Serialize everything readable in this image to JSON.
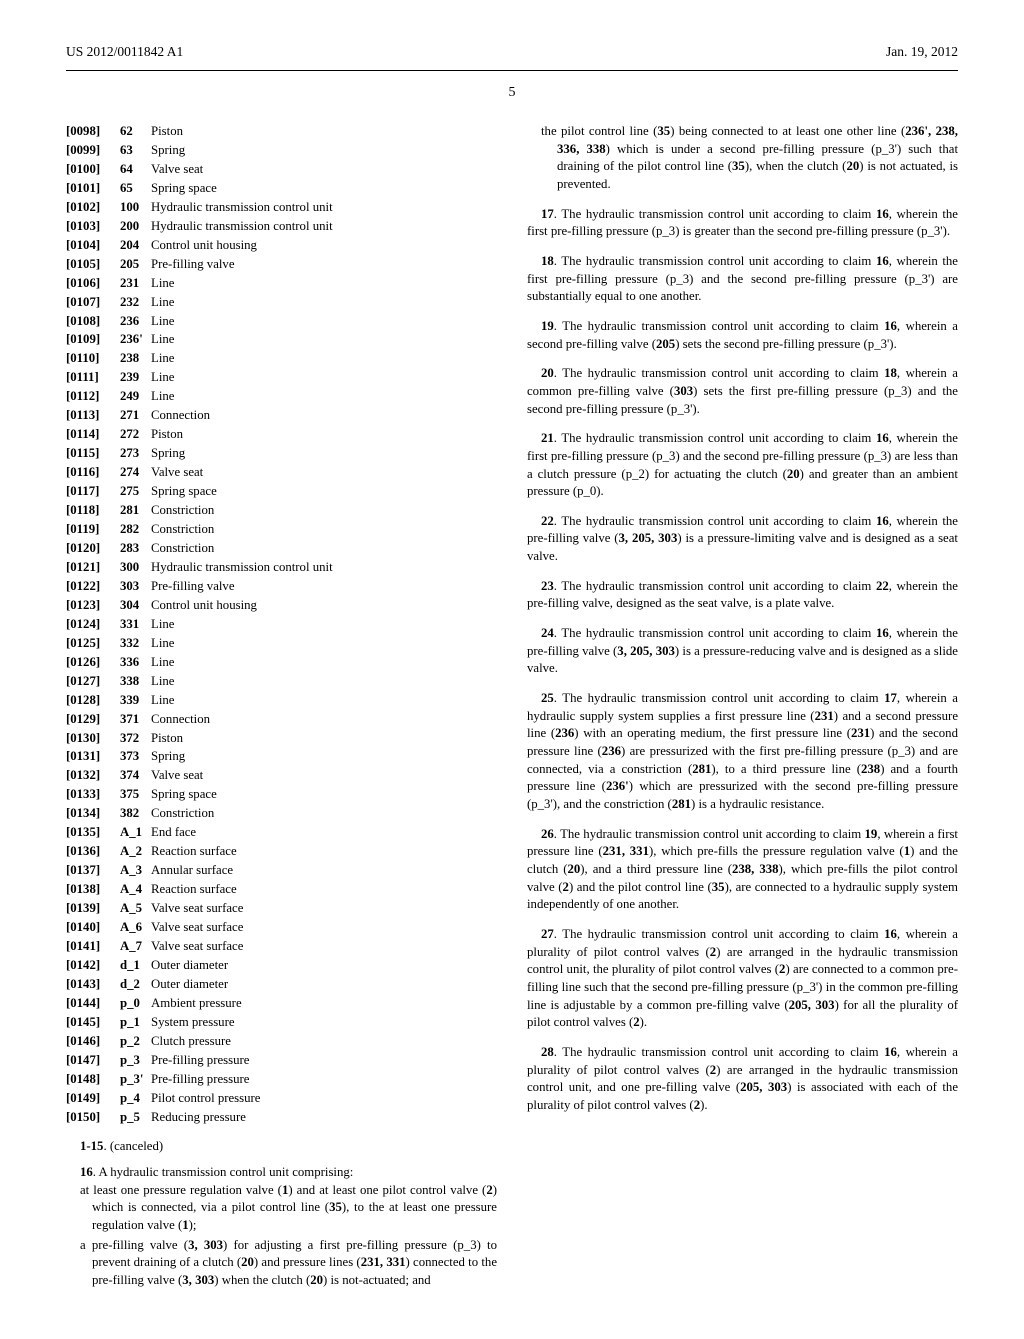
{
  "header": {
    "left": "US 2012/0011842 A1",
    "right": "Jan. 19, 2012"
  },
  "pagenum": "5",
  "refs": [
    {
      "p": "[0098]",
      "n": "62",
      "d": "Piston"
    },
    {
      "p": "[0099]",
      "n": "63",
      "d": "Spring"
    },
    {
      "p": "[0100]",
      "n": "64",
      "d": "Valve seat"
    },
    {
      "p": "[0101]",
      "n": "65",
      "d": "Spring space"
    },
    {
      "p": "[0102]",
      "n": "100",
      "d": "Hydraulic transmission control unit"
    },
    {
      "p": "[0103]",
      "n": "200",
      "d": "Hydraulic transmission control unit"
    },
    {
      "p": "[0104]",
      "n": "204",
      "d": "Control unit housing"
    },
    {
      "p": "[0105]",
      "n": "205",
      "d": "Pre-filling valve"
    },
    {
      "p": "[0106]",
      "n": "231",
      "d": "Line"
    },
    {
      "p": "[0107]",
      "n": "232",
      "d": "Line"
    },
    {
      "p": "[0108]",
      "n": "236",
      "d": "Line"
    },
    {
      "p": "[0109]",
      "n": "236'",
      "d": "Line"
    },
    {
      "p": "[0110]",
      "n": "238",
      "d": "Line"
    },
    {
      "p": "[0111]",
      "n": "239",
      "d": "Line"
    },
    {
      "p": "[0112]",
      "n": "249",
      "d": "Line"
    },
    {
      "p": "[0113]",
      "n": "271",
      "d": "Connection"
    },
    {
      "p": "[0114]",
      "n": "272",
      "d": "Piston"
    },
    {
      "p": "[0115]",
      "n": "273",
      "d": "Spring"
    },
    {
      "p": "[0116]",
      "n": "274",
      "d": "Valve seat"
    },
    {
      "p": "[0117]",
      "n": "275",
      "d": "Spring space"
    },
    {
      "p": "[0118]",
      "n": "281",
      "d": "Constriction"
    },
    {
      "p": "[0119]",
      "n": "282",
      "d": "Constriction"
    },
    {
      "p": "[0120]",
      "n": "283",
      "d": "Constriction"
    },
    {
      "p": "[0121]",
      "n": "300",
      "d": "Hydraulic transmission control unit"
    },
    {
      "p": "[0122]",
      "n": "303",
      "d": "Pre-filling valve"
    },
    {
      "p": "[0123]",
      "n": "304",
      "d": "Control unit housing"
    },
    {
      "p": "[0124]",
      "n": "331",
      "d": "Line"
    },
    {
      "p": "[0125]",
      "n": "332",
      "d": "Line"
    },
    {
      "p": "[0126]",
      "n": "336",
      "d": "Line"
    },
    {
      "p": "[0127]",
      "n": "338",
      "d": "Line"
    },
    {
      "p": "[0128]",
      "n": "339",
      "d": "Line"
    },
    {
      "p": "[0129]",
      "n": "371",
      "d": "Connection"
    },
    {
      "p": "[0130]",
      "n": "372",
      "d": "Piston"
    },
    {
      "p": "[0131]",
      "n": "373",
      "d": "Spring"
    },
    {
      "p": "[0132]",
      "n": "374",
      "d": "Valve seat"
    },
    {
      "p": "[0133]",
      "n": "375",
      "d": "Spring space"
    },
    {
      "p": "[0134]",
      "n": "382",
      "d": "Constriction"
    },
    {
      "p": "[0135]",
      "n": "A_1",
      "d": "End face"
    },
    {
      "p": "[0136]",
      "n": "A_2",
      "d": "Reaction surface"
    },
    {
      "p": "[0137]",
      "n": "A_3",
      "d": "Annular surface"
    },
    {
      "p": "[0138]",
      "n": "A_4",
      "d": "Reaction surface"
    },
    {
      "p": "[0139]",
      "n": "A_5",
      "d": "Valve seat surface"
    },
    {
      "p": "[0140]",
      "n": "A_6",
      "d": "Valve seat surface"
    },
    {
      "p": "[0141]",
      "n": "A_7",
      "d": "Valve seat surface"
    },
    {
      "p": "[0142]",
      "n": "d_1",
      "d": "Outer diameter"
    },
    {
      "p": "[0143]",
      "n": "d_2",
      "d": "Outer diameter"
    },
    {
      "p": "[0144]",
      "n": "p_0",
      "d": "Ambient pressure"
    },
    {
      "p": "[0145]",
      "n": "p_1",
      "d": "System pressure"
    },
    {
      "p": "[0146]",
      "n": "p_2",
      "d": "Clutch pressure"
    },
    {
      "p": "[0147]",
      "n": "p_3",
      "d": "Pre-filling pressure"
    },
    {
      "p": "[0148]",
      "n": "p_3'",
      "d": "Pre-filling pressure"
    },
    {
      "p": "[0149]",
      "n": "p_4",
      "d": "Pilot control pressure"
    },
    {
      "p": "[0150]",
      "n": "p_5",
      "d": "Reducing pressure"
    }
  ],
  "canceled": {
    "range": "1-15",
    "text": ". (canceled)"
  },
  "claim16": {
    "lead_num": "16",
    "lead_text": ". A hydraulic transmission control unit comprising:",
    "sub1": "at least one pressure regulation valve (1) and at least one pilot control valve (2) which is connected, via a pilot control line (35), to the at least one pressure regulation valve (1);",
    "sub2": "a pre-filling valve (3, 303) for adjusting a first pre-filling pressure (p_3) to prevent draining of a clutch (20) and pressure lines (231, 331) connected to the pre-filling valve (3, 303) when the clutch (20) is not-actuated; and",
    "sub3": "the pilot control line (35) being connected to at least one other line (236', 238, 336, 338) which is under a second pre-filling pressure (p_3') such that draining of the pilot control line (35), when the clutch (20) is not actuated, is prevented."
  },
  "claims_right": [
    {
      "n": "17",
      "t": ". The hydraulic transmission control unit according to claim 16, wherein the first pre-filling pressure (p_3) is greater than the second pre-filling pressure (p_3')."
    },
    {
      "n": "18",
      "t": ". The hydraulic transmission control unit according to claim 16, wherein the first pre-filling pressure (p_3) and the second pre-filling pressure (p_3') are substantially equal to one another."
    },
    {
      "n": "19",
      "t": ". The hydraulic transmission control unit according to claim 16, wherein a second pre-filling valve (205) sets the second pre-filling pressure (p_3')."
    },
    {
      "n": "20",
      "t": ". The hydraulic transmission control unit according to claim 18, wherein a common pre-filling valve (303) sets the first pre-filling pressure (p_3) and the second pre-filling pressure (p_3')."
    },
    {
      "n": "21",
      "t": ". The hydraulic transmission control unit according to claim 16, wherein the first pre-filling pressure (p_3) and the second pre-filling pressure (p_3) are less than a clutch pressure (p_2) for actuating the clutch (20) and greater than an ambient pressure (p_0)."
    },
    {
      "n": "22",
      "t": ". The hydraulic transmission control unit according to claim 16, wherein the pre-filling valve (3, 205, 303) is a pressure-limiting valve and is designed as a seat valve."
    },
    {
      "n": "23",
      "t": ". The hydraulic transmission control unit according to claim 22, wherein the pre-filling valve, designed as the seat valve, is a plate valve."
    },
    {
      "n": "24",
      "t": ". The hydraulic transmission control unit according to claim 16, wherein the pre-filling valve (3, 205, 303) is a pressure-reducing valve and is designed as a slide valve."
    },
    {
      "n": "25",
      "t": ". The hydraulic transmission control unit according to claim 17, wherein a hydraulic supply system supplies a first pressure line (231) and a second pressure line (236) with an operating medium, the first pressure line (231) and the second pressure line (236) are pressurized with the first pre-filling pressure (p_3) and are connected, via a constriction (281), to a third pressure line (238) and a fourth pressure line (236') which are pressurized with the second pre-filling pressure (p_3'), and the constriction (281) is a hydraulic resistance."
    },
    {
      "n": "26",
      "t": ". The hydraulic transmission control unit according to claim 19, wherein a first pressure line (231, 331), which pre-fills the pressure regulation valve (1) and the clutch (20), and a third pressure line (238, 338), which pre-fills the pilot control valve (2) and the pilot control line (35), are connected to a hydraulic supply system independently of one another."
    },
    {
      "n": "27",
      "t": ". The hydraulic transmission control unit according to claim 16, wherein a plurality of pilot control valves (2) are arranged in the hydraulic transmission control unit, the plurality of pilot control valves (2) are connected to a common pre-filling line such that the second pre-filling pressure (p_3') in the common pre-filling line is adjustable by a common pre-filling valve (205, 303) for all the plurality of pilot control valves (2)."
    },
    {
      "n": "28",
      "t": ". The hydraulic transmission control unit according to claim 16, wherein a plurality of pilot control valves (2) are arranged in the hydraulic transmission control unit, and one pre-filling valve (205, 303) is associated with each of the plurality of pilot control valves (2)."
    }
  ]
}
